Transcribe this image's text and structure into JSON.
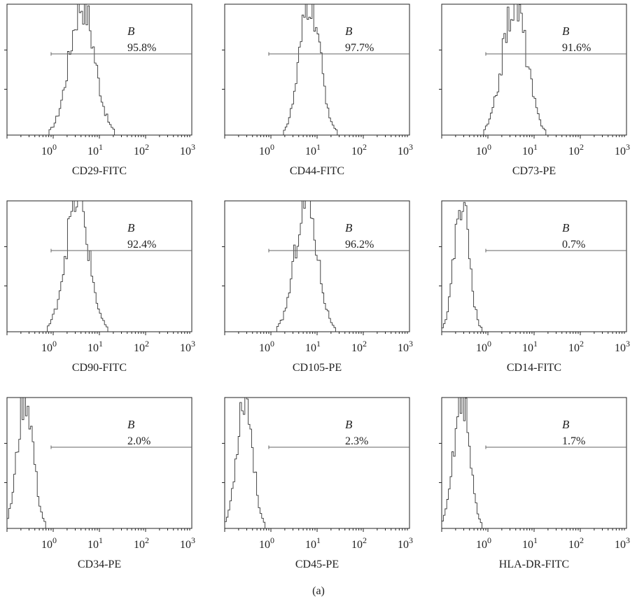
{
  "figure": {
    "caption": "(a)"
  },
  "chart_data": [
    {
      "type": "histogram",
      "xlabel": "CD29-FITC",
      "x_scale": "log",
      "xlim": [
        0.1,
        1000
      ],
      "xtick_labels": [
        "10^0",
        "10^1",
        "10^2",
        "10^3"
      ],
      "gate_label": "B",
      "gate_percent": "95.8%",
      "gate_range": [
        0.9,
        1000
      ],
      "peak_x": 4.2,
      "spread": 0.27,
      "counts_max": 1.0
    },
    {
      "type": "histogram",
      "xlabel": "CD44-FITC",
      "x_scale": "log",
      "xlim": [
        0.1,
        1000
      ],
      "xtick_labels": [
        "10^0",
        "10^1",
        "10^2",
        "10^3"
      ],
      "gate_label": "B",
      "gate_percent": "97.7%",
      "gate_range": [
        0.9,
        1000
      ],
      "peak_x": 7.0,
      "spread": 0.22,
      "counts_max": 1.0
    },
    {
      "type": "histogram",
      "xlabel": "CD73-PE",
      "x_scale": "log",
      "xlim": [
        0.1,
        1000
      ],
      "xtick_labels": [
        "10^0",
        "10^1",
        "10^2",
        "10^3"
      ],
      "gate_label": "B",
      "gate_percent": "91.6%",
      "gate_range": [
        0.9,
        1000
      ],
      "peak_x": 3.8,
      "spread": 0.26,
      "counts_max": 1.0
    },
    {
      "type": "histogram",
      "xlabel": "CD90-FITC",
      "x_scale": "log",
      "xlim": [
        0.1,
        1000
      ],
      "xtick_labels": [
        "10^0",
        "10^1",
        "10^2",
        "10^3"
      ],
      "gate_label": "B",
      "gate_percent": "92.4%",
      "gate_range": [
        0.9,
        1000
      ],
      "peak_x": 3.3,
      "spread": 0.25,
      "counts_max": 1.0
    },
    {
      "type": "histogram",
      "xlabel": "CD105-PE",
      "x_scale": "log",
      "xlim": [
        0.1,
        1000
      ],
      "xtick_labels": [
        "10^0",
        "10^1",
        "10^2",
        "10^3"
      ],
      "gate_label": "B",
      "gate_percent": "96.2%",
      "gate_range": [
        0.9,
        1000
      ],
      "peak_x": 5.8,
      "spread": 0.24,
      "counts_max": 1.0
    },
    {
      "type": "histogram",
      "xlabel": "CD14-FITC",
      "x_scale": "log",
      "xlim": [
        0.1,
        1000
      ],
      "xtick_labels": [
        "10^0",
        "10^1",
        "10^2",
        "10^3"
      ],
      "gate_label": "B",
      "gate_percent": "0.7%",
      "gate_range": [
        0.9,
        1000
      ],
      "peak_x": 0.27,
      "spread": 0.16,
      "counts_max": 1.0
    },
    {
      "type": "histogram",
      "xlabel": "CD34-PE",
      "x_scale": "log",
      "xlim": [
        0.1,
        1000
      ],
      "xtick_labels": [
        "10^0",
        "10^1",
        "10^2",
        "10^3"
      ],
      "gate_label": "B",
      "gate_percent": "2.0%",
      "gate_range": [
        0.9,
        1000
      ],
      "peak_x": 0.25,
      "spread": 0.17,
      "counts_max": 1.0
    },
    {
      "type": "histogram",
      "xlabel": "CD45-PE",
      "x_scale": "log",
      "xlim": [
        0.1,
        1000
      ],
      "xtick_labels": [
        "10^0",
        "10^1",
        "10^2",
        "10^3"
      ],
      "gate_label": "B",
      "gate_percent": "2.3%",
      "gate_range": [
        0.9,
        1000
      ],
      "peak_x": 0.27,
      "spread": 0.17,
      "counts_max": 1.0
    },
    {
      "type": "histogram",
      "xlabel": "HLA-DR-FITC",
      "x_scale": "log",
      "xlim": [
        0.1,
        1000
      ],
      "xtick_labels": [
        "10^0",
        "10^1",
        "10^2",
        "10^3"
      ],
      "gate_label": "B",
      "gate_percent": "1.7%",
      "gate_range": [
        0.9,
        1000
      ],
      "peak_x": 0.27,
      "spread": 0.17,
      "counts_max": 1.0
    }
  ]
}
